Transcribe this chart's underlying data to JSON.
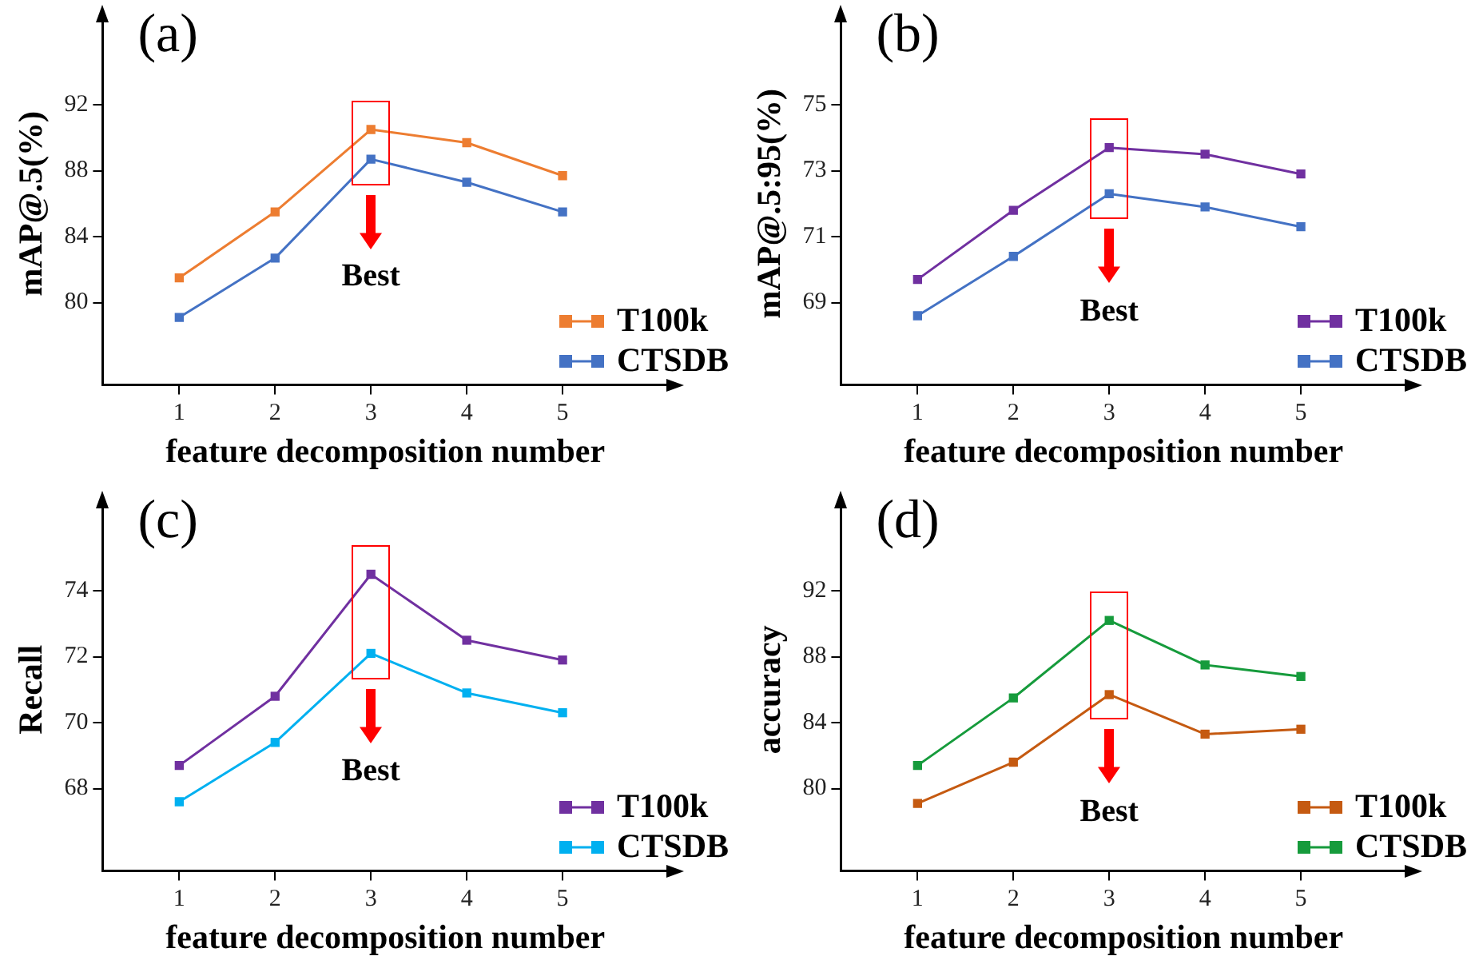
{
  "chart_data": [
    {
      "type": "line",
      "title": "(a)",
      "xlabel": "feature decomposition number",
      "ylabel": "mAP@.5(%)",
      "x": [
        1,
        2,
        3,
        4,
        5
      ],
      "xlim": [
        0.2,
        6.1
      ],
      "xticks": [
        1,
        2,
        3,
        4,
        5
      ],
      "ylim": [
        75,
        97
      ],
      "yticks": [
        80,
        84,
        88,
        92
      ],
      "marker": "square",
      "legend": "bottom right",
      "annotations": [
        "Best"
      ],
      "series": [
        {
          "name": "T100k",
          "color": "#ed7d31",
          "values": [
            81.5,
            85.5,
            90.5,
            89.7,
            87.7
          ]
        },
        {
          "name": "CTSDB",
          "color": "#4472c4",
          "values": [
            79.1,
            82.7,
            88.7,
            87.3,
            85.5
          ]
        }
      ]
    },
    {
      "type": "line",
      "title": "(b)",
      "xlabel": "feature decomposition number",
      "ylabel": "mAP@.5:95(%)",
      "x": [
        1,
        2,
        3,
        4,
        5
      ],
      "xlim": [
        0.2,
        6.1
      ],
      "xticks": [
        1,
        2,
        3,
        4,
        5
      ],
      "ylim": [
        66.5,
        77.5
      ],
      "yticks": [
        69,
        71,
        73,
        75
      ],
      "marker": "square",
      "legend": "bottom right",
      "annotations": [
        "Best"
      ],
      "series": [
        {
          "name": "T100k",
          "color": "#7030a0",
          "values": [
            69.7,
            71.8,
            73.7,
            73.5,
            72.9
          ]
        },
        {
          "name": "CTSDB",
          "color": "#4472c4",
          "values": [
            68.6,
            70.4,
            72.3,
            71.9,
            71.3
          ]
        }
      ]
    },
    {
      "type": "line",
      "title": "(c)",
      "xlabel": "feature decomposition number",
      "ylabel": "Recall",
      "x": [
        1,
        2,
        3,
        4,
        5
      ],
      "xlim": [
        0.2,
        6.1
      ],
      "xticks": [
        1,
        2,
        3,
        4,
        5
      ],
      "ylim": [
        65.5,
        76.5
      ],
      "yticks": [
        68,
        70,
        72,
        74
      ],
      "marker": "square",
      "legend": "bottom right",
      "annotations": [
        "Best"
      ],
      "series": [
        {
          "name": "T100k",
          "color": "#7030a0",
          "values": [
            68.7,
            70.8,
            74.5,
            72.5,
            71.9
          ]
        },
        {
          "name": "CTSDB",
          "color": "#00b0f0",
          "values": [
            67.6,
            69.4,
            72.1,
            70.9,
            70.3
          ]
        }
      ]
    },
    {
      "type": "line",
      "title": "(d)",
      "xlabel": "feature decomposition number",
      "ylabel": "accuracy",
      "x": [
        1,
        2,
        3,
        4,
        5
      ],
      "xlim": [
        0.2,
        6.1
      ],
      "xticks": [
        1,
        2,
        3,
        4,
        5
      ],
      "ylim": [
        75,
        97
      ],
      "yticks": [
        80,
        84,
        88,
        92
      ],
      "marker": "square",
      "legend": "bottom right",
      "annotations": [
        "Best"
      ],
      "series": [
        {
          "name": "T100k",
          "color": "#c55a11",
          "values": [
            79.1,
            81.6,
            85.7,
            83.3,
            83.6
          ]
        },
        {
          "name": "CTSDB",
          "color": "#169b3c",
          "values": [
            81.4,
            85.5,
            90.2,
            87.5,
            86.8
          ]
        }
      ]
    }
  ]
}
